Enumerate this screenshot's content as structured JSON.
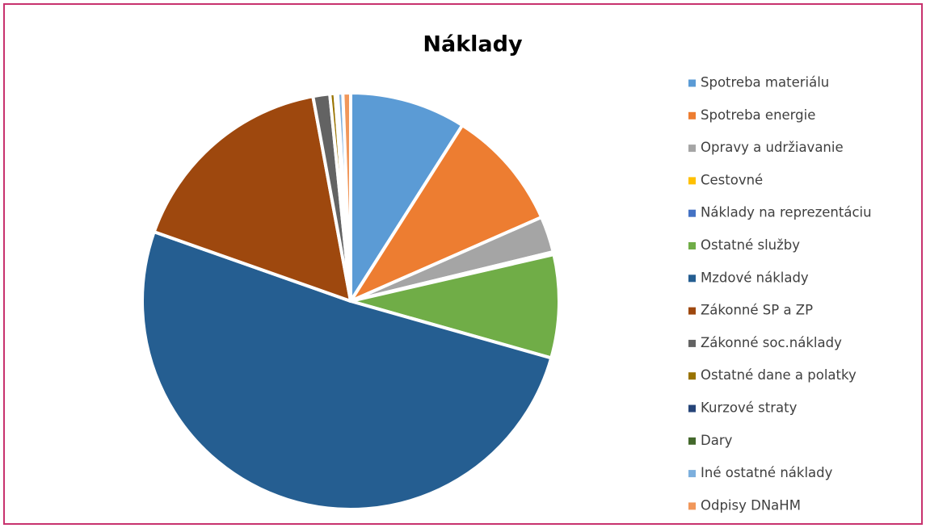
{
  "chart_data": {
    "type": "pie",
    "title": "Náklady",
    "categories": [
      "Spotreba materiálu",
      "Spotreba energie",
      "Opravy a udržiavanie",
      "Cestovné",
      "Náklady na reprezentáciu",
      "Ostatné služby",
      "Mzdové náklady",
      "Zákonné SP a ZP",
      "Zákonné soc.náklady",
      "Ostatné dane a polatky",
      "Kurzové straty",
      "Dary",
      "Iné ostatné náklady",
      "Odpisy DNaHM"
    ],
    "values": [
      9,
      9.4,
      2.8,
      0.1,
      0.1,
      8,
      51,
      16.7,
      1.3,
      0.4,
      0.1,
      0.1,
      0.4,
      0.6
    ],
    "colors": [
      "#5b9bd5",
      "#ed7d31",
      "#a5a5a5",
      "#ffc000",
      "#4472c4",
      "#70ad47",
      "#255e91",
      "#9e480e",
      "#636363",
      "#997300",
      "#264478",
      "#43682b",
      "#7cafdd",
      "#f1975a"
    ],
    "legend": "right"
  }
}
